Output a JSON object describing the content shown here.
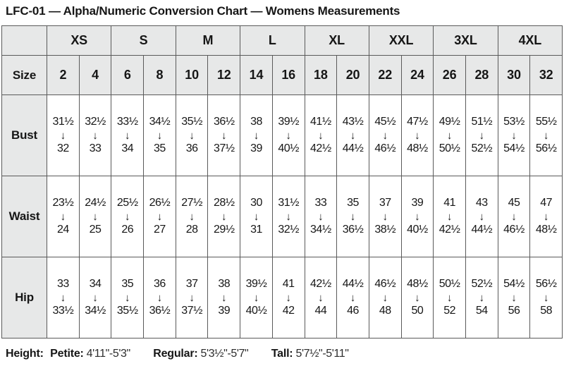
{
  "title": "LFC-01 — Alpha/Numeric Conversion Chart — Womens Measurements",
  "colors": {
    "header_bg": "#e7e8e8",
    "border": "#5a5a5a",
    "text": "#161616",
    "background": "#ffffff"
  },
  "table": {
    "size_label": "Size",
    "arrow_icon": "↓",
    "alpha_sizes": [
      "XS",
      "S",
      "M",
      "L",
      "XL",
      "XXL",
      "3XL",
      "4XL"
    ],
    "numeric_sizes": [
      "2",
      "4",
      "6",
      "8",
      "10",
      "12",
      "14",
      "16",
      "18",
      "20",
      "22",
      "24",
      "26",
      "28",
      "30",
      "32"
    ],
    "rows": [
      {
        "label": "Bust",
        "cells": [
          {
            "from": "31½",
            "to": "32"
          },
          {
            "from": "32½",
            "to": "33"
          },
          {
            "from": "33½",
            "to": "34"
          },
          {
            "from": "34½",
            "to": "35"
          },
          {
            "from": "35½",
            "to": "36"
          },
          {
            "from": "36½",
            "to": "37½"
          },
          {
            "from": "38",
            "to": "39"
          },
          {
            "from": "39½",
            "to": "40½"
          },
          {
            "from": "41½",
            "to": "42½"
          },
          {
            "from": "43½",
            "to": "44½"
          },
          {
            "from": "45½",
            "to": "46½"
          },
          {
            "from": "47½",
            "to": "48½"
          },
          {
            "from": "49½",
            "to": "50½"
          },
          {
            "from": "51½",
            "to": "52½"
          },
          {
            "from": "53½",
            "to": "54½"
          },
          {
            "from": "55½",
            "to": "56½"
          }
        ]
      },
      {
        "label": "Waist",
        "cells": [
          {
            "from": "23½",
            "to": "24"
          },
          {
            "from": "24½",
            "to": "25"
          },
          {
            "from": "25½",
            "to": "26"
          },
          {
            "from": "26½",
            "to": "27"
          },
          {
            "from": "27½",
            "to": "28"
          },
          {
            "from": "28½",
            "to": "29½"
          },
          {
            "from": "30",
            "to": "31"
          },
          {
            "from": "31½",
            "to": "32½"
          },
          {
            "from": "33",
            "to": "34½"
          },
          {
            "from": "35",
            "to": "36½"
          },
          {
            "from": "37",
            "to": "38½"
          },
          {
            "from": "39",
            "to": "40½"
          },
          {
            "from": "41",
            "to": "42½"
          },
          {
            "from": "43",
            "to": "44½"
          },
          {
            "from": "45",
            "to": "46½"
          },
          {
            "from": "47",
            "to": "48½"
          }
        ]
      },
      {
        "label": "Hip",
        "cells": [
          {
            "from": "33",
            "to": "33½"
          },
          {
            "from": "34",
            "to": "34½"
          },
          {
            "from": "35",
            "to": "35½"
          },
          {
            "from": "36",
            "to": "36½"
          },
          {
            "from": "37",
            "to": "37½"
          },
          {
            "from": "38",
            "to": "39"
          },
          {
            "from": "39½",
            "to": "40½"
          },
          {
            "from": "41",
            "to": "42"
          },
          {
            "from": "42½",
            "to": "44"
          },
          {
            "from": "44½",
            "to": "46"
          },
          {
            "from": "46½",
            "to": "48"
          },
          {
            "from": "48½",
            "to": "50"
          },
          {
            "from": "50½",
            "to": "52"
          },
          {
            "from": "52½",
            "to": "54"
          },
          {
            "from": "54½",
            "to": "56"
          },
          {
            "from": "56½",
            "to": "58"
          }
        ]
      }
    ]
  },
  "footer": {
    "height_label": "Height:",
    "segments": [
      {
        "label": "Petite:",
        "value": "4'11\"-5'3\""
      },
      {
        "label": "Regular:",
        "value": "5'3½\"-5'7\""
      },
      {
        "label": "Tall:",
        "value": "5'7½\"-5'11\""
      }
    ]
  }
}
